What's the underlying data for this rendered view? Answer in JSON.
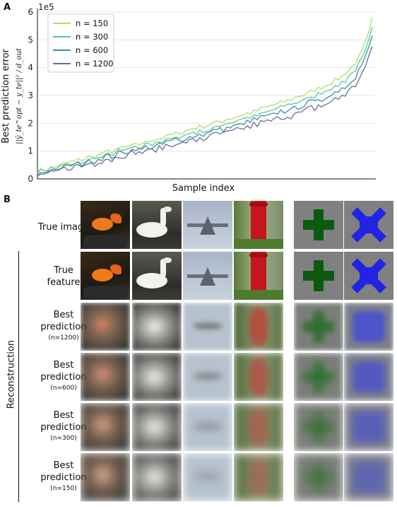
{
  "panel_a": {
    "letter": "A",
    "chart_data": {
      "type": "line",
      "xlabel": "Sample index",
      "ylabel_line1": "Best prediction error",
      "ylabel_line2": "||ŷ_te^opt − y_te||² / d_out",
      "y_exponent": "1e5",
      "ylim": [
        0,
        6
      ],
      "yticks": [
        "0",
        "1",
        "2",
        "3",
        "4",
        "5",
        "6"
      ],
      "grid": "horizontal",
      "legend_position": "top-left",
      "series": [
        {
          "name": "n =  150",
          "color": "#b5dc62",
          "start": 0.28,
          "end": 5.8
        },
        {
          "name": "n =  300",
          "color": "#55c7a4",
          "start": 0.22,
          "end": 5.45
        },
        {
          "name": "n =  600",
          "color": "#3f8f9a",
          "start": 0.17,
          "end": 5.15
        },
        {
          "name": "n = 1200",
          "color": "#6b6aa2",
          "start": 0.12,
          "end": 4.75
        }
      ]
    }
  },
  "panel_b": {
    "letter": "B",
    "reconstruction_label": "Reconstruction",
    "rows": [
      {
        "line1": "True image",
        "line2": "",
        "sub": ""
      },
      {
        "line1": "True",
        "line2": "feature",
        "sub": ""
      },
      {
        "line1": "Best",
        "line2": "prediction",
        "sub": "(n=1200)"
      },
      {
        "line1": "Best",
        "line2": "prediction",
        "sub": "(n=600)"
      },
      {
        "line1": "Best",
        "line2": "prediction",
        "sub": "(n=300)"
      },
      {
        "line1": "Best",
        "line2": "prediction",
        "sub": "(n=150)"
      }
    ],
    "columns": [
      "goldfish",
      "swan",
      "airplane",
      "red-postbox",
      "green-cross",
      "blue-x"
    ]
  }
}
